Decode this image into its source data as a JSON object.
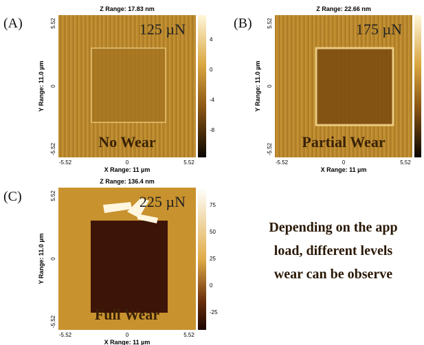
{
  "panels": [
    {
      "label": "(A)",
      "z_range": "Z Range: 17.83 nm",
      "y_axis_label": "Y Range: 11.0 µm",
      "x_axis_label": "X Range: 11 µm",
      "y_ticks": [
        "5.52",
        "0",
        "-5.52"
      ],
      "x_ticks": [
        "-5.52",
        "0",
        "5.52"
      ],
      "colorbar_ticks": [
        "4",
        "0",
        "-4",
        "-8"
      ],
      "load": "125 µN",
      "wear": "No Wear"
    },
    {
      "label": "(B)",
      "z_range": "Z Range: 22.66 nm",
      "y_axis_label": "Y Range: 11.0 µm",
      "x_axis_label": "X Range: 11 µm",
      "y_ticks": [
        "5.52",
        "0",
        "-5.52"
      ],
      "x_ticks": [
        "-5.52",
        "0",
        "5.52"
      ],
      "load": "175 µN",
      "wear": "Partial Wear"
    },
    {
      "label": "(C)",
      "z_range": "Z Range: 136.4 nm",
      "y_axis_label": "Y Range: 11.0 µm",
      "x_axis_label": "X Range: 11 µm",
      "y_ticks": [
        "5.52",
        "0",
        "-5.52"
      ],
      "x_ticks": [
        "-5.52",
        "0",
        "5.52"
      ],
      "colorbar_ticks": [
        "75",
        "50",
        "25",
        "0",
        "-25"
      ],
      "load": "225 µN",
      "wear": "Full Wear"
    }
  ],
  "caption_lines": [
    "Depending on the app",
    "load, different levels",
    "wear can be observe"
  ]
}
